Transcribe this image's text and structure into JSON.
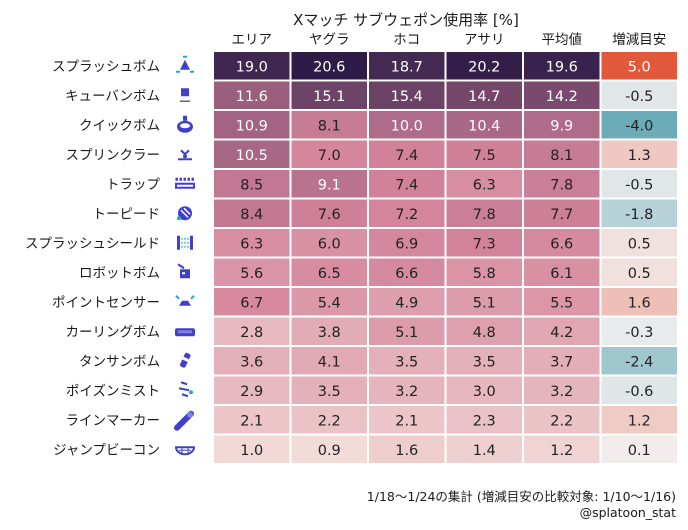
{
  "chart_data": {
    "type": "heatmap",
    "title": "Xマッチ サブウェポン使用率 [%]",
    "columns": [
      "エリア",
      "ヤグラ",
      "ホコ",
      "アサリ",
      "平均値",
      "増減目安"
    ],
    "rows": [
      {
        "name": "スプラッシュボム",
        "icon": "splash-bomb-icon",
        "values": [
          19.0,
          20.6,
          18.7,
          20.2,
          19.6
        ],
        "change": 5.0
      },
      {
        "name": "キューバンボム",
        "icon": "suction-bomb-icon",
        "values": [
          11.6,
          15.1,
          15.4,
          14.7,
          14.2
        ],
        "change": -0.5
      },
      {
        "name": "クイックボム",
        "icon": "burst-bomb-icon",
        "values": [
          10.9,
          8.1,
          10.0,
          10.4,
          9.9
        ],
        "change": -4.0
      },
      {
        "name": "スプリンクラー",
        "icon": "sprinkler-icon",
        "values": [
          10.5,
          7.0,
          7.4,
          7.5,
          8.1
        ],
        "change": 1.3
      },
      {
        "name": "トラップ",
        "icon": "ink-mine-icon",
        "values": [
          8.5,
          9.1,
          7.4,
          6.3,
          7.8
        ],
        "change": -0.5
      },
      {
        "name": "トーピード",
        "icon": "torpedo-icon",
        "values": [
          8.4,
          7.6,
          7.2,
          7.8,
          7.7
        ],
        "change": -1.8
      },
      {
        "name": "スプラッシュシールド",
        "icon": "splash-wall-icon",
        "values": [
          6.3,
          6.0,
          6.9,
          7.3,
          6.6
        ],
        "change": 0.5
      },
      {
        "name": "ロボットボム",
        "icon": "autobomb-icon",
        "values": [
          5.6,
          6.5,
          6.6,
          5.8,
          6.1
        ],
        "change": 0.5
      },
      {
        "name": "ポイントセンサー",
        "icon": "point-sensor-icon",
        "values": [
          6.7,
          5.4,
          4.9,
          5.1,
          5.5
        ],
        "change": 1.6
      },
      {
        "name": "カーリングボム",
        "icon": "curling-bomb-icon",
        "values": [
          2.8,
          3.8,
          5.1,
          4.8,
          4.2
        ],
        "change": -0.3
      },
      {
        "name": "タンサンボム",
        "icon": "fizzy-bomb-icon",
        "values": [
          3.6,
          4.1,
          3.5,
          3.5,
          3.7
        ],
        "change": -2.4
      },
      {
        "name": "ポイズンミスト",
        "icon": "toxic-mist-icon",
        "values": [
          2.9,
          3.5,
          3.2,
          3.0,
          3.2
        ],
        "change": -0.6
      },
      {
        "name": "ラインマーカー",
        "icon": "angle-shooter-icon",
        "values": [
          2.1,
          2.2,
          2.1,
          2.3,
          2.2
        ],
        "change": 1.2
      },
      {
        "name": "ジャンプビーコン",
        "icon": "squid-beakon-icon",
        "values": [
          1.0,
          0.9,
          1.6,
          1.4,
          1.2
        ],
        "change": 0.1
      }
    ],
    "footnote": "1/18〜1/24の集計 (増減目安の比較対象: 1/10〜1/16)",
    "credit": "@splatoon_stat",
    "colors": {
      "value_low": "#f3dcd8",
      "value_mid": "#d4849b",
      "value_high": "#2f1b48",
      "change_negative": "#4a9aaa",
      "change_neutral": "#f2f0f0",
      "change_positive": "#e2583a",
      "icon": "#4040c8",
      "text_dark": "#222222",
      "text_light": "#ffffff"
    }
  }
}
